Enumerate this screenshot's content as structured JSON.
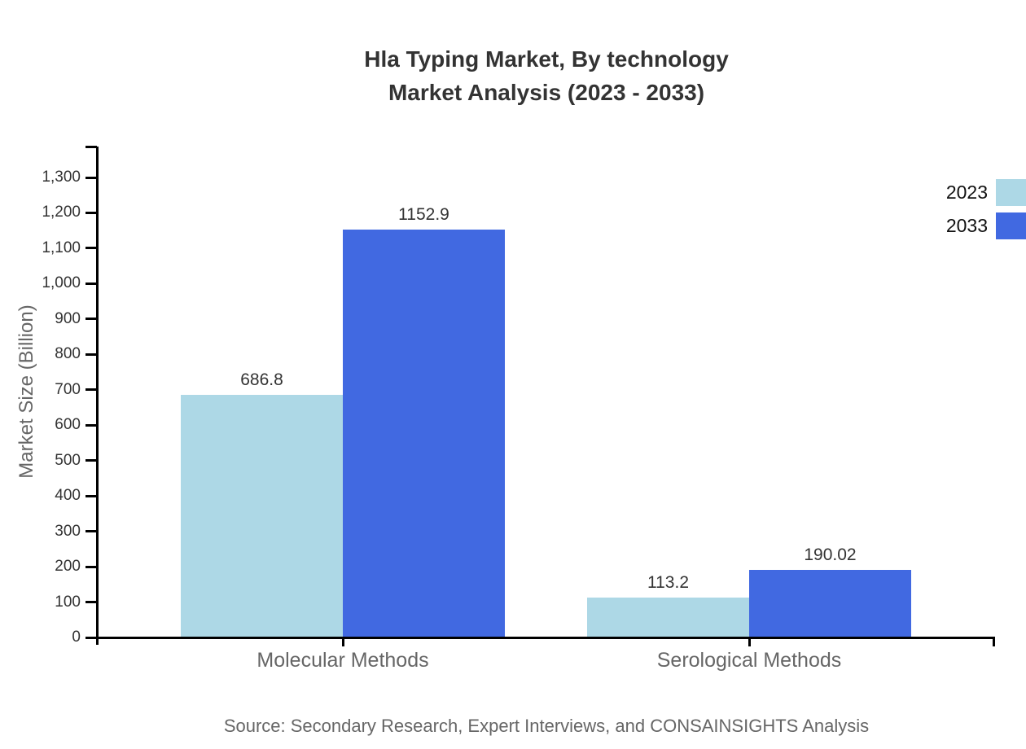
{
  "title": {
    "line1": "Hla Typing Market, By technology",
    "line2": "Market Analysis (2023 - 2033)"
  },
  "source": "Source: Secondary Research, Expert Interviews, and CONSAINSIGHTS Analysis",
  "chart_data": {
    "type": "bar",
    "title": "Hla Typing Market, By technology - Market Analysis (2023 - 2033)",
    "categories": [
      "Molecular Methods",
      "Serological Methods"
    ],
    "series": [
      {
        "name": "2023",
        "color": "#ADD8E6",
        "values": [
          686.8,
          113.2
        ]
      },
      {
        "name": "2033",
        "color": "#4169E1",
        "values": [
          1152.9,
          190.02
        ]
      }
    ],
    "value_labels": [
      "686.8",
      "1152.9",
      "113.2",
      "190.02"
    ],
    "xlabel": "",
    "ylabel": "Market Size (Billion)",
    "ylim": [
      0,
      1388
    ],
    "ytick_step": 100,
    "ytick_labeled_max": 1300,
    "ytick_labels": [
      "0",
      "100",
      "200",
      "300",
      "400",
      "500",
      "600",
      "700",
      "800",
      "900",
      "1,000",
      "1,100",
      "1,200",
      "1,300"
    ],
    "grid": false,
    "legend_position": "right-outside-top",
    "colors": {
      "axis": "#000000",
      "title_text": "#333333",
      "tick_label_text": "#333333",
      "value_label_text": "#333333",
      "category_label_text": "#666666",
      "axis_title_text": "#666666",
      "source_text": "#666666",
      "background": "#ffffff"
    }
  }
}
